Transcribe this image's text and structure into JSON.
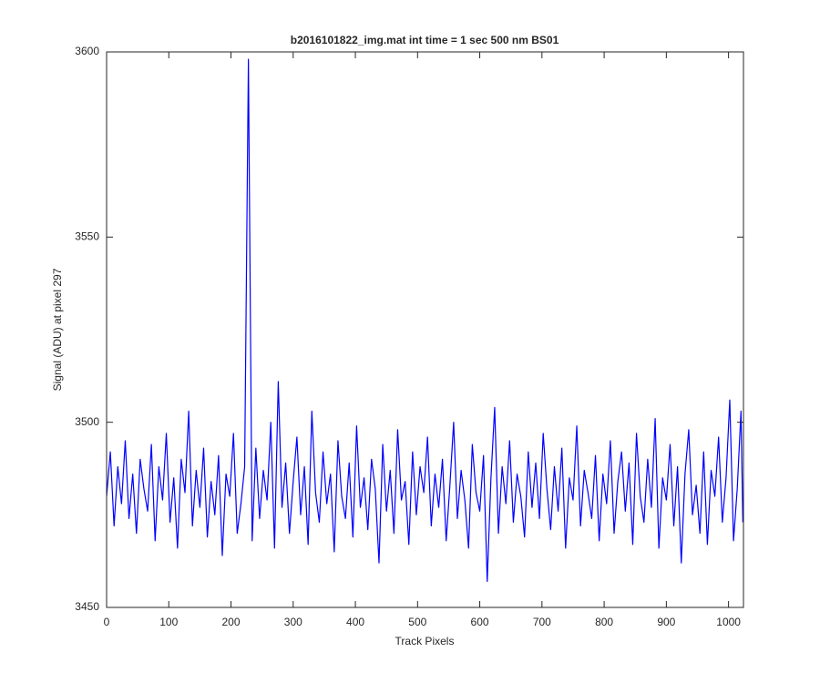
{
  "chart_data": {
    "type": "line",
    "title": "b2016101822_img.mat int time = 1 sec  500 nm BS01",
    "xlabel": "Track Pixels",
    "ylabel": "Signal (ADU) at pixel 297",
    "color": "#0000ff",
    "xlim": [
      0,
      1024
    ],
    "ylim": [
      3450,
      3600
    ],
    "xticks": [
      0,
      100,
      200,
      300,
      400,
      500,
      600,
      700,
      800,
      900,
      1000
    ],
    "yticks": [
      3450,
      3500,
      3550,
      3600
    ],
    "x": [
      0,
      6,
      12,
      18,
      24,
      30,
      36,
      42,
      48,
      54,
      60,
      66,
      72,
      78,
      84,
      90,
      96,
      102,
      108,
      114,
      120,
      126,
      132,
      138,
      144,
      150,
      156,
      162,
      168,
      174,
      180,
      186,
      192,
      198,
      204,
      210,
      216,
      222,
      228,
      234,
      240,
      246,
      252,
      258,
      264,
      270,
      276,
      282,
      288,
      294,
      300,
      306,
      312,
      318,
      324,
      330,
      336,
      342,
      348,
      354,
      360,
      366,
      372,
      378,
      384,
      390,
      396,
      402,
      408,
      414,
      420,
      426,
      432,
      438,
      444,
      450,
      456,
      462,
      468,
      474,
      480,
      486,
      492,
      498,
      504,
      510,
      516,
      522,
      528,
      534,
      540,
      546,
      552,
      558,
      564,
      570,
      576,
      582,
      588,
      594,
      600,
      606,
      612,
      618,
      624,
      630,
      636,
      642,
      648,
      654,
      660,
      666,
      672,
      678,
      684,
      690,
      696,
      702,
      708,
      714,
      720,
      726,
      732,
      738,
      744,
      750,
      756,
      762,
      768,
      774,
      780,
      786,
      792,
      798,
      804,
      810,
      816,
      822,
      828,
      834,
      840,
      846,
      852,
      858,
      864,
      870,
      876,
      882,
      888,
      894,
      900,
      906,
      912,
      918,
      924,
      930,
      936,
      942,
      948,
      954,
      960,
      966,
      972,
      978,
      984,
      990,
      996,
      1002,
      1008,
      1014,
      1020,
      1023
    ],
    "values": [
      3480,
      3492,
      3472,
      3488,
      3478,
      3495,
      3474,
      3486,
      3470,
      3490,
      3482,
      3476,
      3494,
      3468,
      3488,
      3479,
      3497,
      3473,
      3485,
      3466,
      3490,
      3481,
      3503,
      3472,
      3487,
      3477,
      3493,
      3469,
      3484,
      3475,
      3491,
      3464,
      3486,
      3480,
      3497,
      3470,
      3478,
      3488,
      3598,
      3468,
      3493,
      3474,
      3487,
      3479,
      3500,
      3466,
      3511,
      3477,
      3489,
      3470,
      3484,
      3496,
      3475,
      3488,
      3467,
      3503,
      3481,
      3473,
      3492,
      3478,
      3486,
      3465,
      3495,
      3480,
      3474,
      3489,
      3469,
      3499,
      3477,
      3485,
      3471,
      3490,
      3482,
      3462,
      3494,
      3476,
      3487,
      3470,
      3498,
      3479,
      3484,
      3467,
      3492,
      3475,
      3488,
      3481,
      3496,
      3472,
      3486,
      3477,
      3490,
      3468,
      3483,
      3500,
      3474,
      3487,
      3479,
      3466,
      3494,
      3481,
      3476,
      3491,
      3457,
      3485,
      3504,
      3470,
      3488,
      3478,
      3495,
      3473,
      3486,
      3480,
      3469,
      3492,
      3477,
      3489,
      3474,
      3497,
      3482,
      3471,
      3488,
      3476,
      3493,
      3466,
      3485,
      3479,
      3499,
      3472,
      3487,
      3481,
      3474,
      3491,
      3468,
      3486,
      3478,
      3495,
      3470,
      3484,
      3492,
      3476,
      3489,
      3467,
      3497,
      3480,
      3473,
      3490,
      3477,
      3501,
      3466,
      3485,
      3479,
      3494,
      3472,
      3488,
      3462,
      3486,
      3498,
      3475,
      3483,
      3470,
      3492,
      3467,
      3487,
      3480,
      3496,
      3473,
      3485,
      3506,
      3468,
      3482,
      3503,
      3473
    ]
  }
}
